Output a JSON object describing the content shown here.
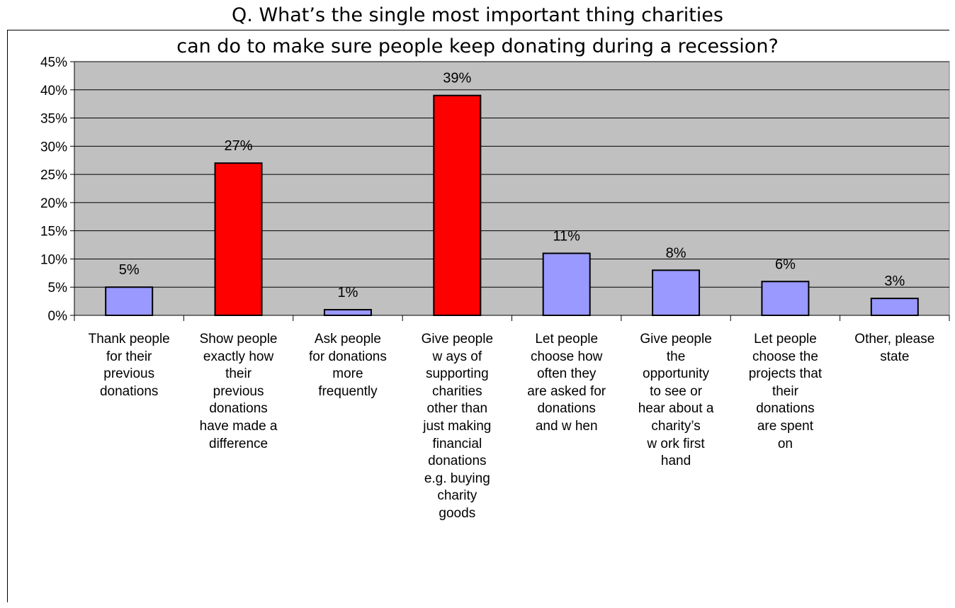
{
  "chart_data": {
    "type": "bar",
    "title_lines": [
      "Q. What’s the single most important thing charities",
      "can do to make sure people keep donating during a recession?"
    ],
    "categories": [
      [
        "Thank people",
        "for their",
        "previous",
        "donations"
      ],
      [
        "Show  people",
        "exactly how",
        "their",
        "previous",
        "donations",
        "have made a",
        "difference"
      ],
      [
        "Ask people",
        "for donations",
        "more",
        "frequently"
      ],
      [
        "Give people",
        "w ays of",
        "supporting",
        "charities",
        "other than",
        "just making",
        "financial",
        "donations",
        "e.g. buying",
        "charity",
        "goods"
      ],
      [
        "Let people",
        "choose how",
        "often they",
        "are asked for",
        "donations",
        "and w hen"
      ],
      [
        "Give people",
        "the",
        "opportunity",
        "to see or",
        "hear about a",
        "charity’s",
        "w ork first",
        "hand"
      ],
      [
        "Let people",
        "choose the",
        "projects that",
        "their",
        "donations",
        "are spent",
        "on"
      ],
      [
        "Other, please",
        "state"
      ]
    ],
    "values": [
      5,
      27,
      1,
      39,
      11,
      8,
      6,
      3
    ],
    "data_labels": [
      "5%",
      "27%",
      "1%",
      "39%",
      "11%",
      "8%",
      "6%",
      "3%"
    ],
    "highlighted": [
      false,
      true,
      false,
      true,
      false,
      false,
      false,
      false
    ],
    "yticks": [
      "0%",
      "5%",
      "10%",
      "15%",
      "20%",
      "25%",
      "30%",
      "35%",
      "40%",
      "45%"
    ],
    "ylim": [
      0,
      45
    ],
    "grid": true,
    "colors": {
      "bar": "#9999ff",
      "highlight": "#ff0000",
      "plot_background": "#c0c0c0",
      "bar_outline": "#000000"
    }
  }
}
